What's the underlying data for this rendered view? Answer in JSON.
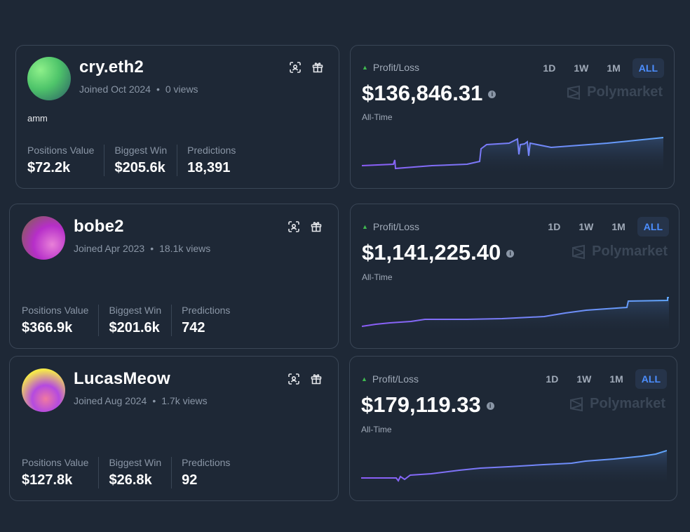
{
  "profiles": [
    {
      "username": "cry.eth2",
      "joined": "Joined Oct 2024",
      "views": "0 views",
      "bio": "amm",
      "stats": [
        {
          "label": "Positions Value",
          "value": "$72.2k"
        },
        {
          "label": "Biggest Win",
          "value": "$205.6k"
        },
        {
          "label": "Predictions",
          "value": "18,391"
        }
      ],
      "avatar_colors": [
        "#8ef08a",
        "#4ec46a",
        "#2a5a66"
      ],
      "pnl": {
        "label": "Profit/Loss",
        "value": "$136,846.31",
        "period": "All-Time",
        "tabs": [
          "1D",
          "1W",
          "1M",
          "ALL"
        ],
        "active_tab": "ALL",
        "brand": "Polymarket"
      }
    },
    {
      "username": "bobe2",
      "joined": "Joined Apr 2023",
      "views": "18.1k views",
      "bio": "",
      "stats": [
        {
          "label": "Positions Value",
          "value": "$366.9k"
        },
        {
          "label": "Biggest Win",
          "value": "$201.6k"
        },
        {
          "label": "Predictions",
          "value": "742"
        }
      ],
      "avatar_colors": [
        "#b62ec9",
        "#e880d8",
        "#7a6a3a"
      ],
      "pnl": {
        "label": "Profit/Loss",
        "value": "$1,141,225.40",
        "period": "All-Time",
        "tabs": [
          "1D",
          "1W",
          "1M",
          "ALL"
        ],
        "active_tab": "ALL",
        "brand": "Polymarket"
      }
    },
    {
      "username": "LucasMeow",
      "joined": "Joined Aug 2024",
      "views": "1.7k views",
      "bio": "",
      "stats": [
        {
          "label": "Positions Value",
          "value": "$127.8k"
        },
        {
          "label": "Biggest Win",
          "value": "$26.8k"
        },
        {
          "label": "Predictions",
          "value": "92"
        }
      ],
      "avatar_colors": [
        "#f5e84a",
        "#f07aa0",
        "#b44ae0"
      ],
      "pnl": {
        "label": "Profit/Loss",
        "value": "$179,119.33",
        "period": "All-Time",
        "tabs": [
          "1D",
          "1W",
          "1M",
          "ALL"
        ],
        "active_tab": "ALL",
        "brand": "Polymarket"
      }
    }
  ],
  "colors": {
    "background": "#1e2836",
    "border": "#3a4656",
    "accent_blue": "#4c8eff",
    "line_start": "#8b5cf6",
    "line_end": "#60a5fa",
    "profit_green": "#3fb950"
  },
  "icons": [
    "scan-face-icon",
    "gift-icon",
    "info-icon",
    "polymarket-logo-icon",
    "triangle-up-icon"
  ]
}
